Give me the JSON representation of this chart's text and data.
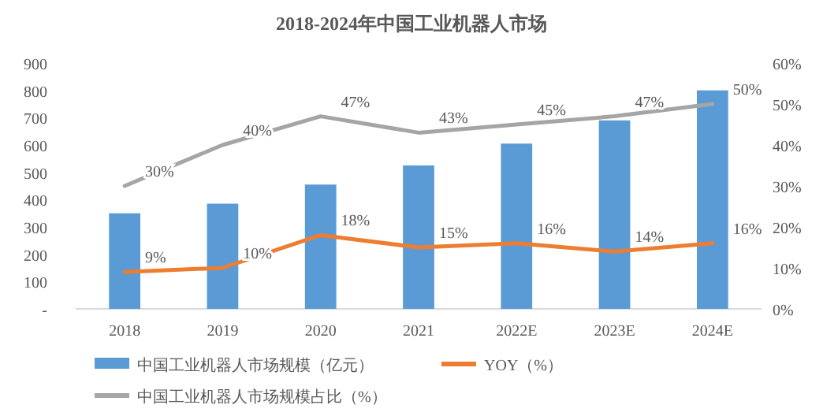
{
  "chart_data": {
    "type": "bar",
    "title": "2018-2024年中国工业机器人市场",
    "categories": [
      "2018",
      "2019",
      "2020",
      "2021",
      "2022E",
      "2023E",
      "2024E"
    ],
    "series": [
      {
        "name": "中国工业机器人市场规模（亿元）",
        "color": "#5b9bd5",
        "values": [
          350,
          385,
          455,
          525,
          605,
          690,
          800
        ]
      },
      {
        "name": "YOY（%）",
        "type": "line",
        "axis": "y2",
        "color": "#ed7d31",
        "values": [
          9,
          10,
          18,
          15,
          16,
          14,
          16
        ],
        "value_labels": [
          "9%",
          "10%",
          "18%",
          "15%",
          "16%",
          "14%",
          "16%"
        ]
      },
      {
        "name": "中国工业机器人市场规模占比（%）",
        "type": "line",
        "axis": "y2",
        "color": "#a5a5a5",
        "values": [
          30,
          40,
          47,
          43,
          45,
          47,
          50
        ],
        "value_labels": [
          "30%",
          "40%",
          "47%",
          "43%",
          "45%",
          "47%",
          "50%"
        ]
      }
    ],
    "ylim": [
      0,
      900
    ],
    "yticks": [
      {
        "value": 0,
        "label": "-"
      },
      100,
      200,
      300,
      400,
      500,
      600,
      700,
      800,
      900
    ],
    "y2lim": [
      0,
      60
    ],
    "y2ticks": [
      {
        "value": 0,
        "label": "0%"
      },
      {
        "value": 10,
        "label": "10%"
      },
      {
        "value": 20,
        "label": "20%"
      },
      {
        "value": 30,
        "label": "30%"
      },
      {
        "value": 40,
        "label": "40%"
      },
      {
        "value": 50,
        "label": "50%"
      },
      {
        "value": 60,
        "label": "60%"
      }
    ],
    "legend": "bottom",
    "marker": "none",
    "grid": false
  }
}
